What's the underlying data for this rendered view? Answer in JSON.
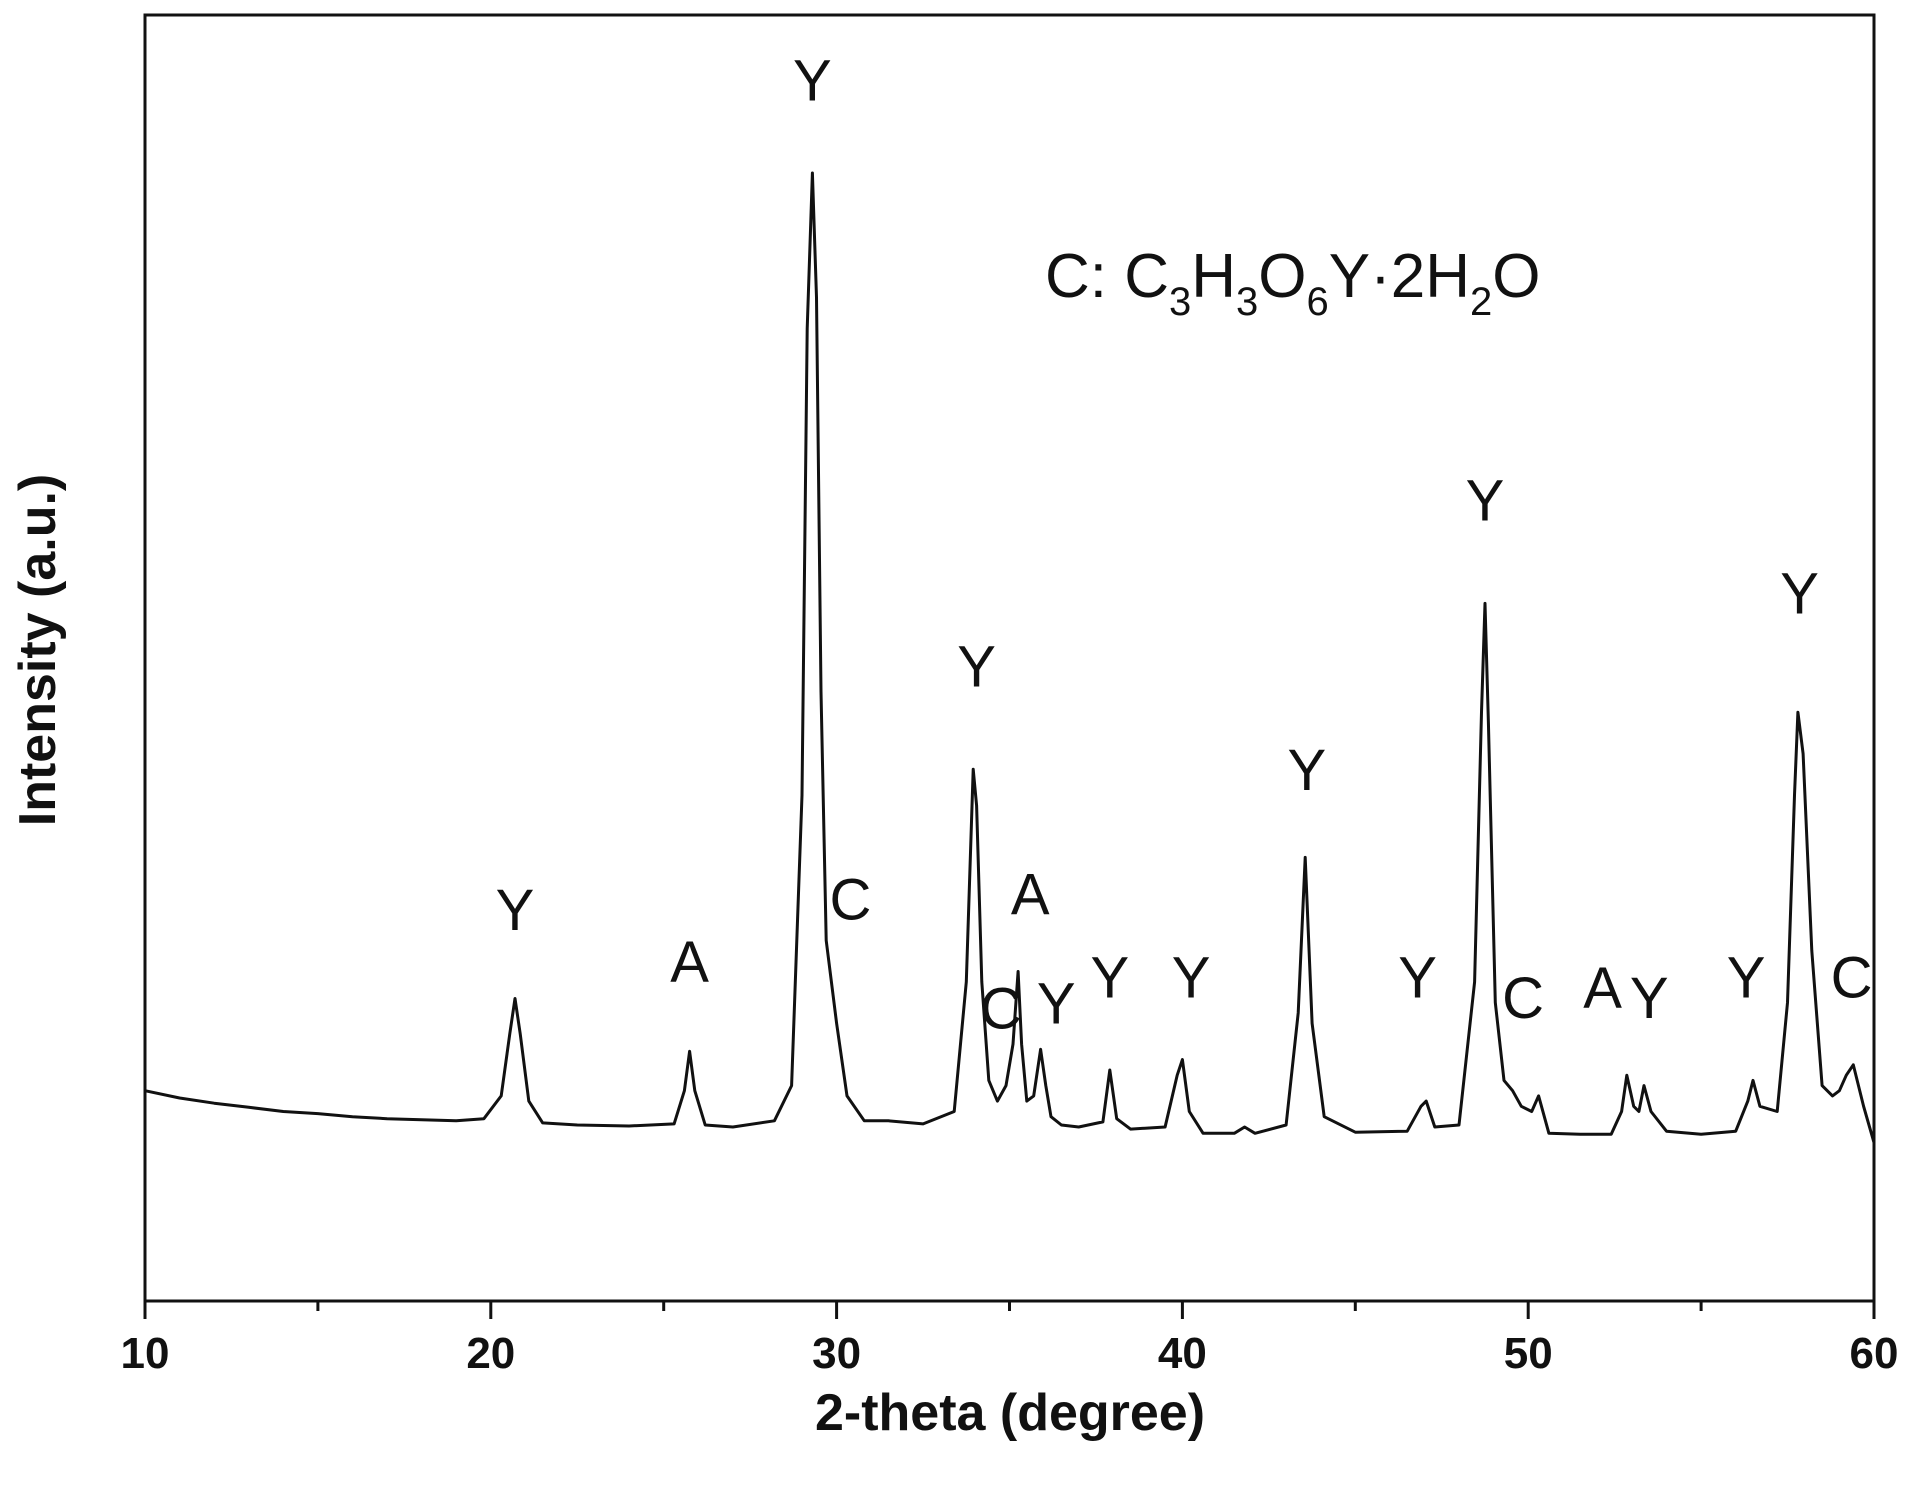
{
  "chart_data": {
    "type": "line",
    "title": "",
    "xlabel": "2-theta (degree)",
    "ylabel": "Intensity (a.u.)",
    "xlim": [
      10,
      60
    ],
    "ylim": [
      0,
      100
    ],
    "x_ticks": [
      10,
      20,
      30,
      40,
      50,
      60
    ],
    "x_minor_ticks": [
      15,
      25,
      35,
      45,
      55
    ],
    "grid": false,
    "line_color": "#111111",
    "legend_note": {
      "parts": [
        {
          "text": "C: C",
          "sub": false
        },
        {
          "text": "3",
          "sub": true
        },
        {
          "text": "H",
          "sub": false
        },
        {
          "text": "3",
          "sub": true
        },
        {
          "text": "O",
          "sub": false
        },
        {
          "text": "6",
          "sub": true
        },
        {
          "text": "Y·2H",
          "sub": false
        },
        {
          "text": "2",
          "sub": true
        },
        {
          "text": "O",
          "sub": false
        }
      ],
      "position": "top-right"
    },
    "series": [
      {
        "x": [
          10,
          11,
          12,
          13,
          14,
          15,
          16,
          17,
          18,
          19,
          19.8,
          20.3,
          20.55,
          20.7,
          20.85,
          21.1,
          21.5,
          22.5,
          24,
          25.3,
          25.6,
          25.75,
          25.9,
          26.2,
          27,
          28.2,
          28.7,
          29.0,
          29.15,
          29.3,
          29.42,
          29.55,
          29.7,
          30.0,
          30.3,
          30.8,
          31.5,
          32.5,
          33.4,
          33.75,
          33.95,
          34.05,
          34.2,
          34.4,
          34.65,
          34.9,
          35.1,
          35.25,
          35.35,
          35.5,
          35.7,
          35.9,
          36.05,
          36.2,
          36.5,
          37,
          37.7,
          37.9,
          38.1,
          38.5,
          39.5,
          39.85,
          40.0,
          40.2,
          40.6,
          41.5,
          41.8,
          42.1,
          43,
          43.35,
          43.55,
          43.75,
          44.1,
          45,
          46.5,
          46.9,
          47.05,
          47.3,
          48,
          48.45,
          48.65,
          48.75,
          48.85,
          49.05,
          49.3,
          49.55,
          49.8,
          50.1,
          50.3,
          50.6,
          51.5,
          52.4,
          52.7,
          52.85,
          53.05,
          53.2,
          53.35,
          53.55,
          54,
          55,
          56,
          56.35,
          56.5,
          56.7,
          57.2,
          57.5,
          57.7,
          57.8,
          57.95,
          58.2,
          58.5,
          58.8,
          59.0,
          59.2,
          59.4,
          59.7,
          60
        ],
        "y": [
          11.5,
          10.8,
          10.3,
          9.9,
          9.5,
          9.3,
          9.0,
          8.8,
          8.7,
          8.6,
          8.8,
          11,
          17,
          20.4,
          17,
          10.5,
          8.4,
          8.2,
          8.1,
          8.3,
          11.5,
          15.3,
          11.5,
          8.2,
          8.0,
          8.6,
          12,
          40,
          85,
          100,
          88,
          50,
          26,
          18,
          11,
          8.6,
          8.6,
          8.3,
          9.5,
          22,
          42.5,
          39,
          22,
          12.5,
          10.5,
          12,
          16,
          23,
          16,
          10.5,
          11,
          15.5,
          12,
          9,
          8.2,
          8.0,
          8.5,
          13.5,
          8.8,
          7.8,
          8.0,
          13,
          14.5,
          9.5,
          7.4,
          7.4,
          8.0,
          7.4,
          8.2,
          19,
          34,
          18,
          9.0,
          7.5,
          7.6,
          10,
          10.5,
          8.0,
          8.2,
          22,
          48,
          58.5,
          47,
          20,
          12.5,
          11.5,
          10,
          9.5,
          11,
          7.4,
          7.3,
          7.3,
          9.5,
          13,
          10,
          9.5,
          12,
          9.5,
          7.6,
          7.3,
          7.6,
          10.5,
          12.5,
          10,
          9.5,
          20,
          40,
          48,
          44,
          25,
          12,
          11,
          11.5,
          13,
          14,
          10,
          6.5
        ]
      }
    ],
    "peak_labels": [
      {
        "text": "Y",
        "x": 20.7,
        "y": 27
      },
      {
        "text": "A",
        "x": 25.75,
        "y": 22
      },
      {
        "text": "Y",
        "x": 29.3,
        "y": 107
      },
      {
        "text": "C",
        "x": 30.4,
        "y": 28
      },
      {
        "text": "Y",
        "x": 34.05,
        "y": 50.5
      },
      {
        "text": "A",
        "x": 35.6,
        "y": 28.5
      },
      {
        "text": "C",
        "x": 34.75,
        "y": 17.5
      },
      {
        "text": "Y",
        "x": 36.35,
        "y": 18
      },
      {
        "text": "Y",
        "x": 37.9,
        "y": 20.5
      },
      {
        "text": "Y",
        "x": 40.25,
        "y": 20.5
      },
      {
        "text": "Y",
        "x": 43.6,
        "y": 40.5
      },
      {
        "text": "Y",
        "x": 46.8,
        "y": 20.5
      },
      {
        "text": "Y",
        "x": 48.75,
        "y": 66.5
      },
      {
        "text": "C",
        "x": 49.85,
        "y": 18.5
      },
      {
        "text": "A",
        "x": 52.15,
        "y": 19.5
      },
      {
        "text": "Y",
        "x": 53.5,
        "y": 18.5
      },
      {
        "text": "Y",
        "x": 56.3,
        "y": 20.5
      },
      {
        "text": "Y",
        "x": 57.85,
        "y": 57.5
      },
      {
        "text": "C",
        "x": 59.35,
        "y": 20.5
      }
    ]
  }
}
